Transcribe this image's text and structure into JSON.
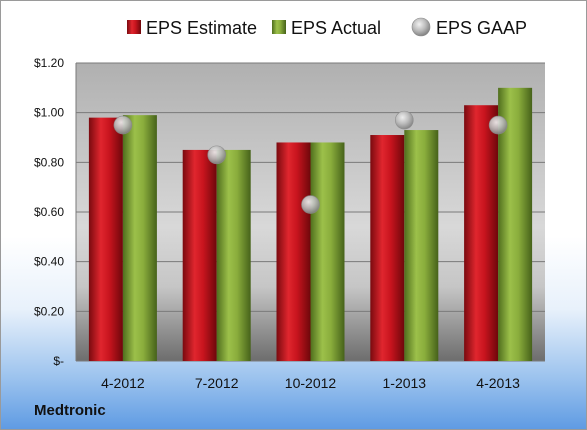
{
  "chart_data": {
    "type": "bar",
    "categories": [
      "4-2012",
      "7-2012",
      "10-2012",
      "1-2013",
      "4-2013"
    ],
    "series": [
      {
        "name": "EPS Estimate",
        "kind": "bar",
        "color": "#c8141e",
        "values": [
          0.98,
          0.85,
          0.88,
          0.91,
          1.03
        ]
      },
      {
        "name": "EPS Actual",
        "kind": "bar",
        "color": "#8aad3c",
        "values": [
          0.99,
          0.85,
          0.88,
          0.93,
          1.1
        ]
      },
      {
        "name": "EPS GAAP",
        "kind": "marker",
        "color": "#b9b9b9",
        "values": [
          0.95,
          0.83,
          0.63,
          0.97,
          0.95
        ]
      }
    ],
    "ylim": [
      0,
      1.2
    ],
    "yticks": [
      0,
      0.2,
      0.4,
      0.6,
      0.8,
      1.0,
      1.2
    ],
    "ytick_labels": [
      "$-",
      "$0.20",
      "$0.40",
      "$0.60",
      "$0.80",
      "$1.00",
      "$1.20"
    ],
    "grid": true,
    "legend_position": "top"
  },
  "footer": {
    "company": "Medtronic"
  }
}
